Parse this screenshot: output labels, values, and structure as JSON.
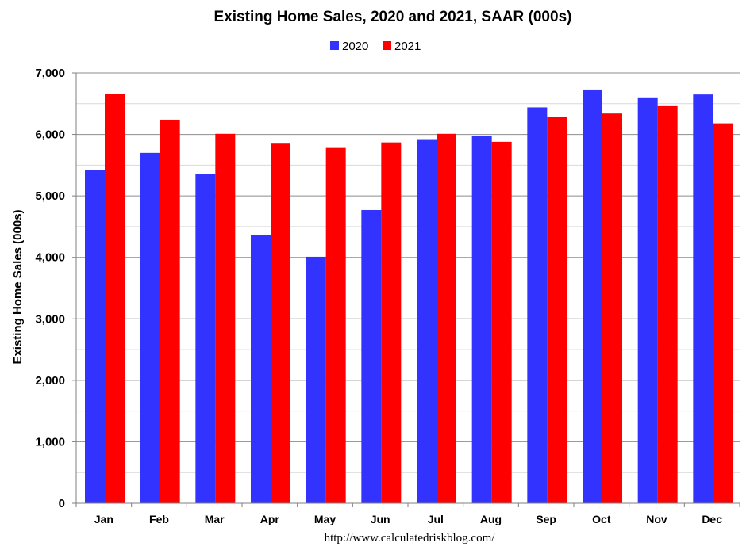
{
  "chart_data": {
    "type": "bar",
    "title": "Existing Home Sales,  2020 and 2021, SAAR (000s)",
    "xlabel": "",
    "ylabel": "Existing Home Sales (000s)",
    "categories": [
      "Jan",
      "Feb",
      "Mar",
      "Apr",
      "May",
      "Jun",
      "Jul",
      "Aug",
      "Sep",
      "Oct",
      "Nov",
      "Dec"
    ],
    "series": [
      {
        "name": "2020",
        "color": "#3333ff",
        "values": [
          5420,
          5700,
          5350,
          4370,
          4010,
          4770,
          5910,
          5970,
          6440,
          6730,
          6590,
          6650
        ]
      },
      {
        "name": "2021",
        "color": "#ff0000",
        "values": [
          6660,
          6240,
          6010,
          5850,
          5780,
          5870,
          6010,
          5880,
          6290,
          6340,
          6460,
          6180
        ]
      }
    ],
    "ylim": [
      0,
      7000
    ],
    "yticks": [
      0,
      1000,
      2000,
      3000,
      4000,
      5000,
      6000,
      7000
    ],
    "ytick_labels": [
      "0",
      "1,000",
      "2,000",
      "3,000",
      "4,000",
      "5,000",
      "6,000",
      "7,000"
    ],
    "grid": true,
    "legend_position": "top-center",
    "source": "http://www.calculatedriskblog.com/"
  }
}
